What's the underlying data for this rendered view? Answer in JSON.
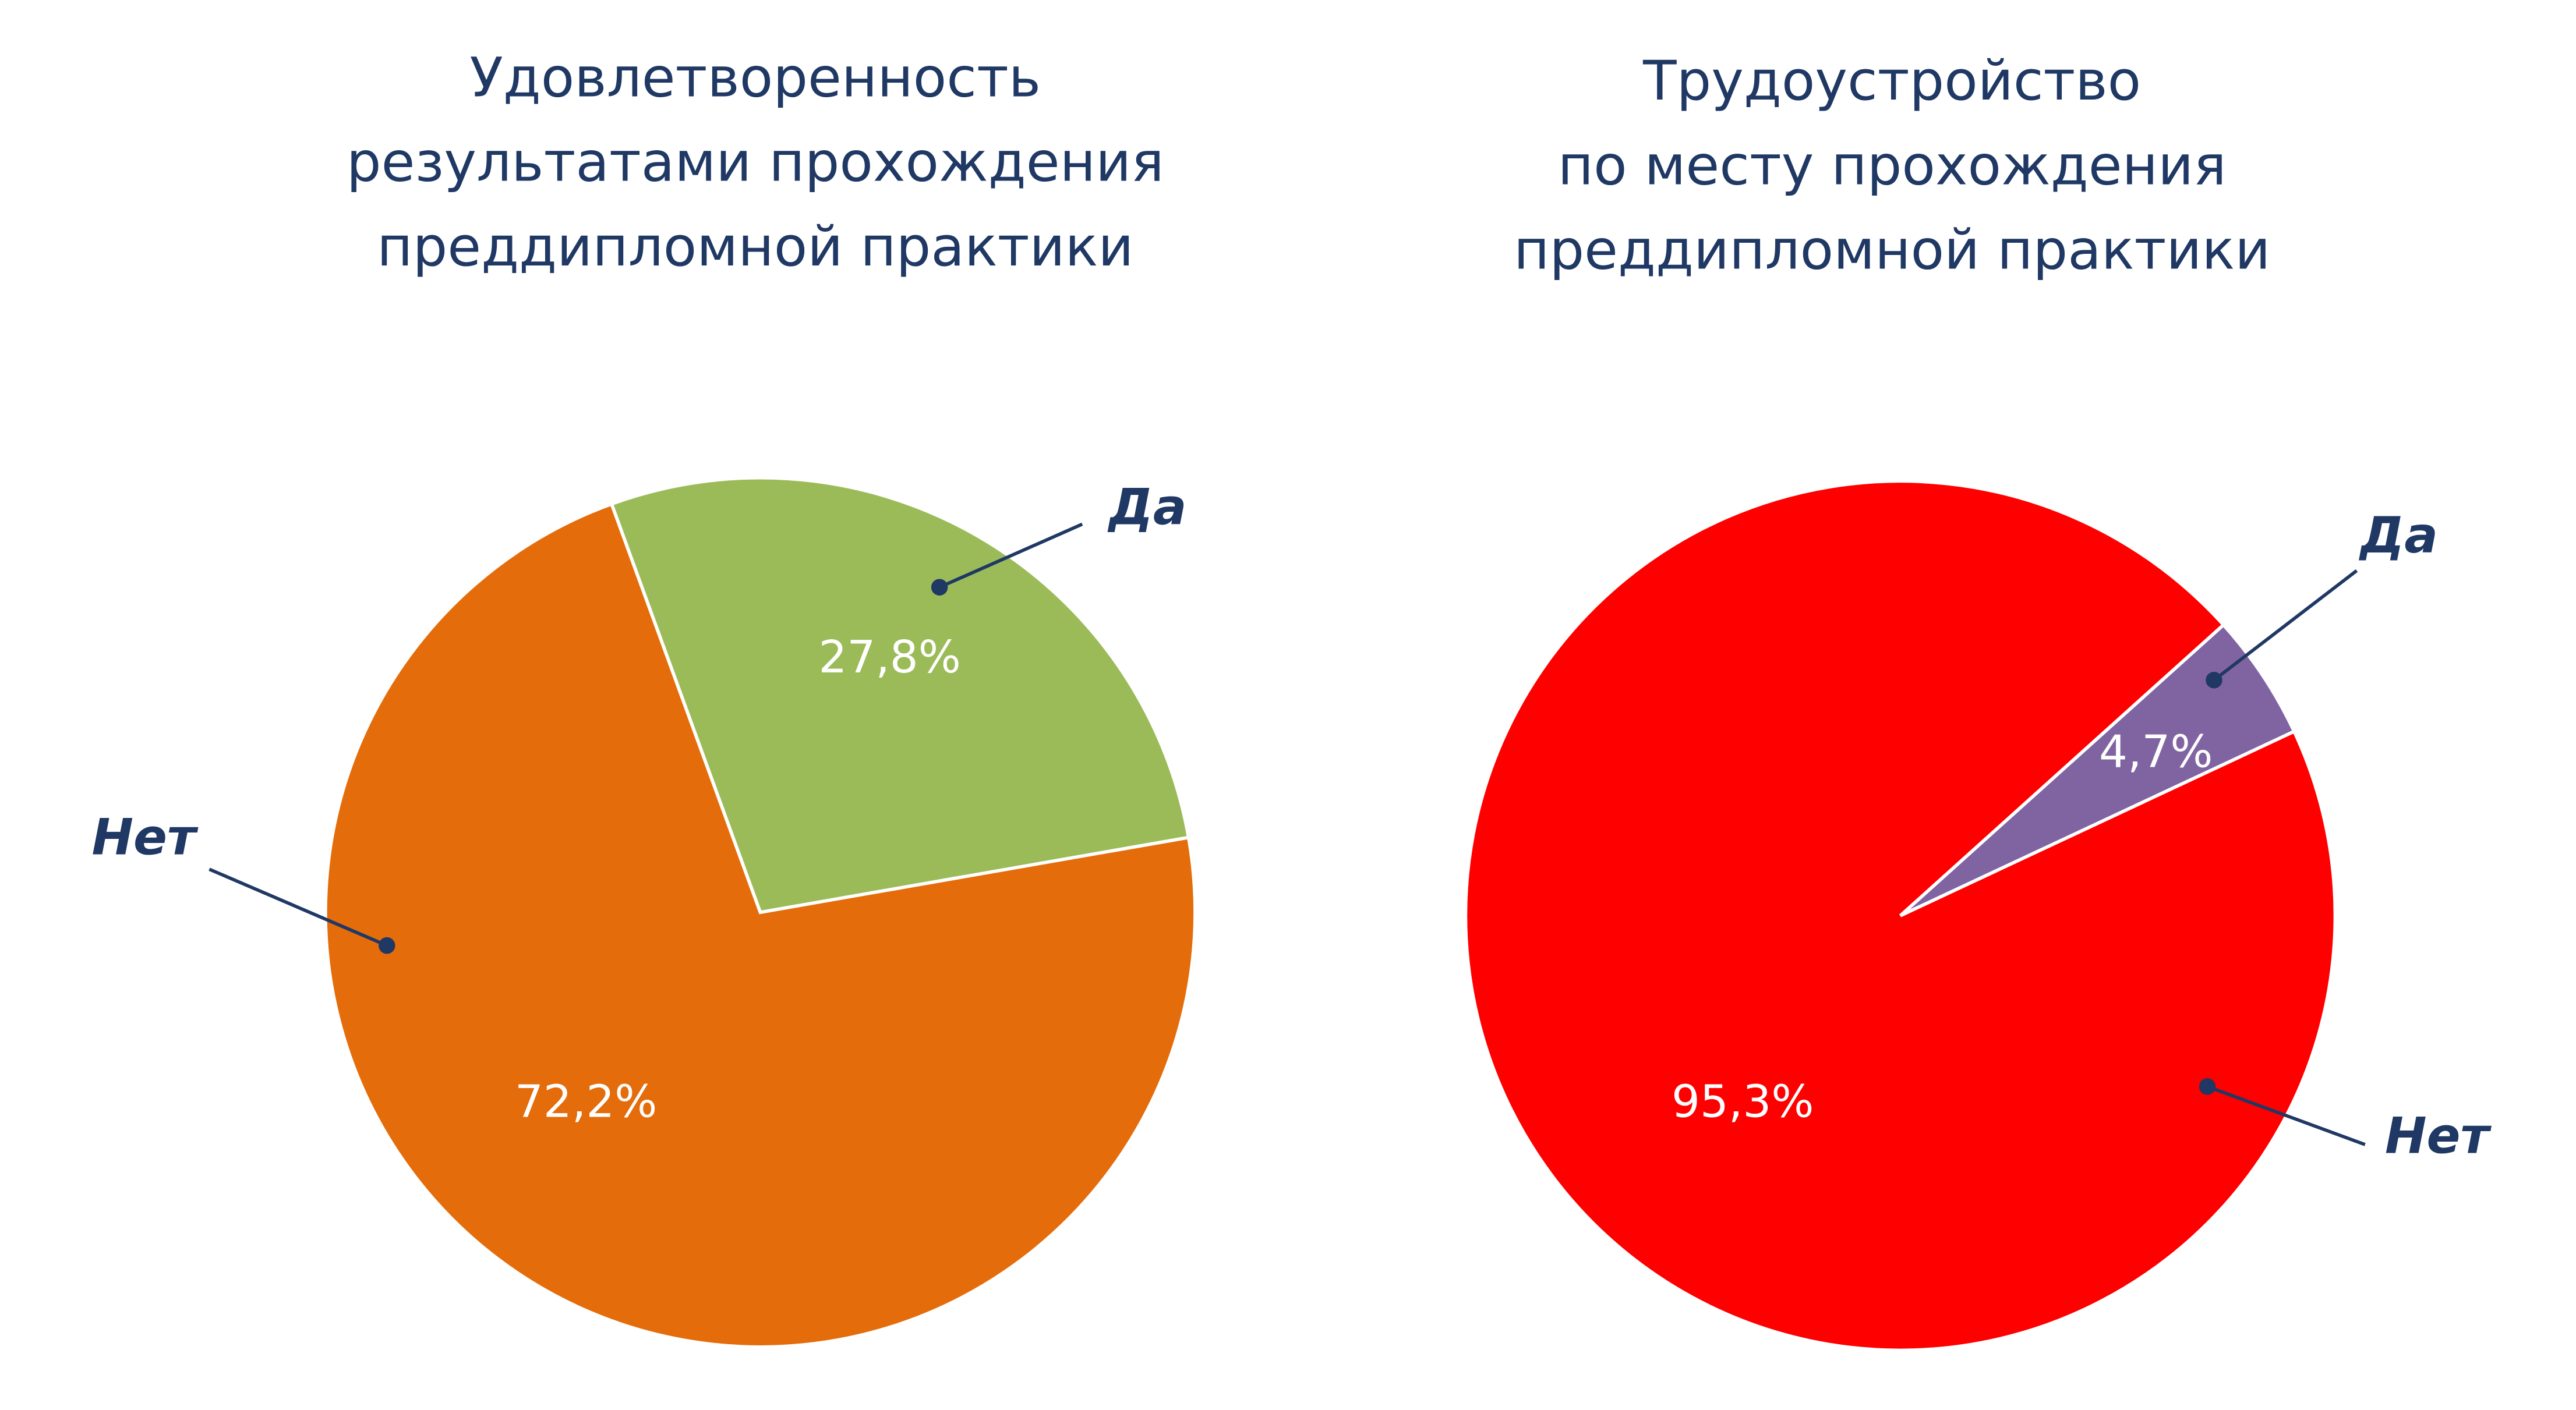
{
  "chart_data": [
    {
      "type": "pie",
      "title": [
        "Удовлетворенность",
        "результатами прохождения",
        "преддипломной практики"
      ],
      "categories": [
        "Да",
        "Нет"
      ],
      "values": [
        27.8,
        72.2
      ],
      "value_labels": [
        "27,8%",
        "72,2%"
      ],
      "colors": [
        "#9bbb59",
        "#e46c0a"
      ]
    },
    {
      "type": "pie",
      "title": [
        "Трудоустройство",
        "по месту прохождения",
        "преддипломной практики"
      ],
      "categories": [
        "Да",
        "Нет"
      ],
      "values": [
        4.7,
        95.3
      ],
      "value_labels": [
        "4,7%",
        "95,3%"
      ],
      "colors": [
        "#8064a2",
        "#ff0000"
      ]
    }
  ]
}
